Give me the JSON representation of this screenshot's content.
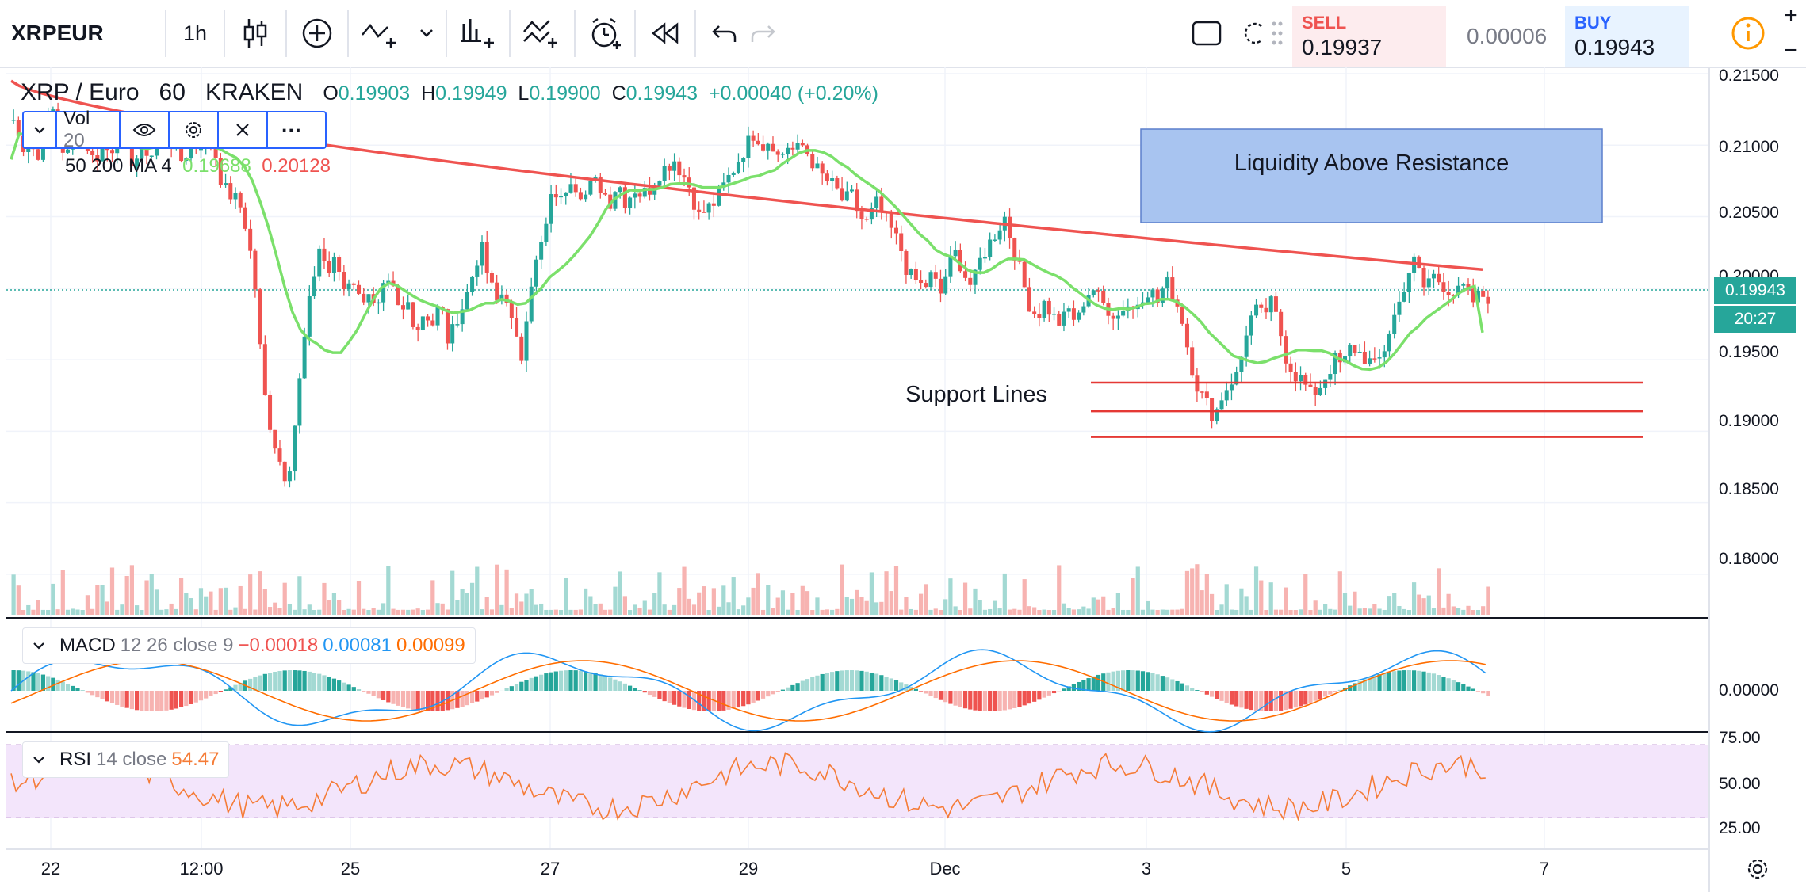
{
  "toolbar": {
    "symbol": "XRPEUR",
    "interval": "1h",
    "sell_label": "SELL",
    "sell_price": "0.19937",
    "spread": "0.00006",
    "buy_label": "BUY",
    "buy_price": "0.19943"
  },
  "legend": {
    "pair": "XRP / Euro",
    "interval": "60",
    "exchange": "KRAKEN",
    "open_label": "O",
    "open": "0.19903",
    "high_label": "H",
    "high": "0.19949",
    "low_label": "L",
    "low": "0.19900",
    "close_label": "C",
    "close": "0.19943",
    "change": "+0.00040 (+0.20%)"
  },
  "vol_indicator": {
    "label": "Vol",
    "value": "20"
  },
  "ma_indicator": {
    "label": "50 200 MA 4",
    "ma50": "0.19688",
    "ma200": "0.20128"
  },
  "macd": {
    "label": "MACD",
    "params": "12 26 close 9",
    "v1": "−0.00018",
    "v2": "0.00081",
    "v3": "0.00099"
  },
  "rsi": {
    "label": "RSI",
    "params": "14 close",
    "value": "54.47"
  },
  "annotations": {
    "liquidity": "Liquidity Above Resistance",
    "support": "Support Lines"
  },
  "price_axis": {
    "ticks": [
      "0.21500",
      "0.21000",
      "0.20500",
      "0.20000",
      "0.19500",
      "0.19000",
      "0.18500",
      "0.18000"
    ],
    "last_price": "0.19943",
    "countdown": "20:27"
  },
  "macd_axis": {
    "ticks": [
      "0.00000"
    ]
  },
  "rsi_axis": {
    "ticks": [
      "75.00",
      "50.00",
      "25.00"
    ]
  },
  "time_axis": {
    "ticks": [
      "22",
      "12:00",
      "25",
      "27",
      "29",
      "Dec",
      "3",
      "5",
      "7"
    ]
  },
  "colors": {
    "up": "#26a69a",
    "down": "#ef5350",
    "ma50": "#7be06b",
    "ma200": "#ef5350",
    "rsi": "#f57c37",
    "macd": "#2196f3",
    "signal": "#ff6d00"
  },
  "chart_data": {
    "type": "candlestick",
    "symbol": "XRP / Euro",
    "interval": "60",
    "ylim": [
      0.1775,
      0.2155
    ],
    "support_levels": [
      0.1934,
      0.1914,
      0.1896
    ],
    "resistance_level": 0.2015,
    "closes": [
      0.2118,
      0.2098,
      0.2106,
      0.2088,
      0.2115,
      0.2125,
      0.2098,
      0.2092,
      0.2112,
      0.2102,
      0.2088,
      0.21,
      0.2095,
      0.2109,
      0.2096,
      0.2087,
      0.2101,
      0.2092,
      0.2104,
      0.2112,
      0.2097,
      0.2088,
      0.2102,
      0.2098,
      0.2112,
      0.2095,
      0.207,
      0.2065,
      0.206,
      0.204,
      0.2,
      0.193,
      0.19,
      0.188,
      0.1865,
      0.191,
      0.196,
      0.2,
      0.203,
      0.201,
      0.202,
      0.2,
      0.201,
      0.199,
      0.2,
      0.198,
      0.2,
      0.2,
      0.198,
      0.199,
      0.197,
      0.1985,
      0.1975,
      0.199,
      0.196,
      0.198,
      0.199,
      0.201,
      0.203,
      0.2005,
      0.199,
      0.2,
      0.197,
      0.195,
      0.2,
      0.202,
      0.204,
      0.207,
      0.206,
      0.208,
      0.207,
      0.2065,
      0.2075,
      0.207,
      0.206,
      0.2075,
      0.206,
      0.207,
      0.2065,
      0.207,
      0.208,
      0.2085,
      0.209,
      0.208,
      0.207,
      0.205,
      0.2055,
      0.206,
      0.207,
      0.208,
      0.209,
      0.21,
      0.211,
      0.21,
      0.2105,
      0.209,
      0.21,
      0.2095,
      0.21,
      0.209,
      0.208,
      0.2075,
      0.207,
      0.206,
      0.2065,
      0.205,
      0.2045,
      0.206,
      0.205,
      0.204,
      0.203,
      0.201,
      0.2005,
      0.2,
      0.201,
      0.1995,
      0.2015,
      0.2025,
      0.201,
      0.2,
      0.202,
      0.203,
      0.204,
      0.205,
      0.203,
      0.201,
      0.199,
      0.198,
      0.199,
      0.198,
      0.1975,
      0.1985,
      0.1975,
      0.1995,
      0.2,
      0.199,
      0.1985,
      0.198,
      0.199,
      0.1985,
      0.1995,
      0.2,
      0.199,
      0.2005,
      0.1995,
      0.198,
      0.195,
      0.193,
      0.192,
      0.191,
      0.1925,
      0.1935,
      0.194,
      0.197,
      0.1985,
      0.198,
      0.199,
      0.1975,
      0.195,
      0.194,
      0.1935,
      0.1925,
      0.193,
      0.194,
      0.195,
      0.1945,
      0.196,
      0.1955,
      0.195,
      0.1945,
      0.1955,
      0.1975,
      0.199,
      0.201,
      0.202,
      0.2,
      0.201,
      0.2005,
      0.2,
      0.1995,
      0.2,
      0.199,
      0.1995,
      0.1994
    ],
    "ma50_start": 0.209,
    "ma50_end": 0.1969,
    "ma200_start": 0.2145,
    "ma200_end": 0.2013,
    "rsi_last": 54.47,
    "rsi_ylim": [
      15,
      80
    ],
    "rsi_band": [
      30,
      70
    ]
  }
}
